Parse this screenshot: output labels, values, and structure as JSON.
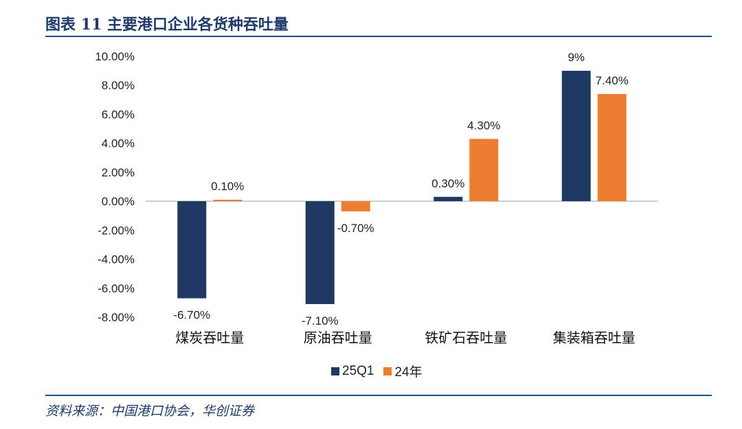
{
  "header": {
    "title": "图表 11  主要港口企业各货种吞吐量"
  },
  "footer": {
    "source": "资料来源：中国港口协会，华创证券"
  },
  "colors": {
    "accent": "#1F4E8C",
    "title": "#1F3A68",
    "series_1": "#1F3864",
    "series_2": "#ED7D31"
  },
  "chart_data": {
    "type": "bar",
    "title": "",
    "xlabel": "",
    "ylabel": "",
    "ylim": [
      -8,
      10
    ],
    "y_ticks": [
      "10.00%",
      "8.00%",
      "6.00%",
      "4.00%",
      "2.00%",
      "0.00%",
      "-2.00%",
      "-4.00%",
      "-6.00%",
      "-8.00%"
    ],
    "categories": [
      "煤炭吞吐量",
      "原油吞吐量",
      "铁矿石吞吐量",
      "集装箱吞吐量"
    ],
    "series": [
      {
        "name": "25Q1",
        "values": [
          -6.7,
          -7.1,
          0.3,
          9
        ],
        "labels": [
          "-6.70%",
          "-7.10%",
          "0.30%",
          "9%"
        ],
        "color": "#1F3864"
      },
      {
        "name": "24年",
        "values": [
          0.1,
          -0.7,
          4.3,
          7.4
        ],
        "labels": [
          "0.10%",
          "-0.70%",
          "4.30%",
          "7.40%"
        ],
        "color": "#ED7D31"
      }
    ],
    "grid": false,
    "legend_position": "bottom"
  }
}
